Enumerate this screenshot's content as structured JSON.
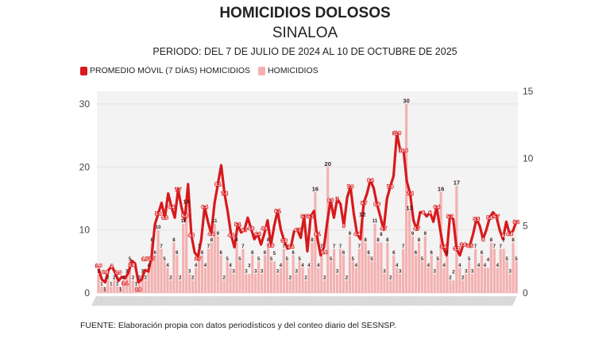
{
  "chart_data": {
    "type": "bar+line",
    "title": "HOMICIDIOS DOLOSOS",
    "subtitle": "SINALOA",
    "period": "PERIODO: DEL 7 DE JULIO DE 2024 AL 10 DE OCTUBRE DE 2025",
    "legend": {
      "placement": "top-left",
      "items": [
        {
          "label": "PROMEDIO MÓVIL (7 DÍAS) HOMICIDIOS",
          "color": "#d7191c"
        },
        {
          "label": "HOMICIDIOS",
          "color": "#f4b0b0"
        }
      ]
    },
    "y_left": {
      "ylim": [
        0,
        32
      ],
      "ticks": [
        "0",
        "10",
        "20",
        "30"
      ]
    },
    "y_right": {
      "ylim": [
        0,
        15
      ],
      "ticks": [
        "0",
        "5",
        "10",
        "15"
      ]
    },
    "grid": true,
    "series": [
      {
        "name": "HOMICIDIOS",
        "type": "bar",
        "axis": "left",
        "values": [
          3,
          1,
          1,
          2,
          1,
          2,
          1,
          1,
          2,
          3,
          5,
          2,
          1,
          2,
          3,
          2,
          4,
          8,
          6,
          10,
          7,
          5,
          4,
          2,
          8,
          6,
          2,
          11,
          14,
          3,
          2,
          4,
          7,
          6,
          4,
          7,
          8,
          11,
          9,
          6,
          2,
          5,
          4,
          3,
          8,
          5,
          7,
          3,
          3,
          6,
          3,
          5,
          3,
          6,
          8,
          5,
          5,
          3,
          4,
          7,
          5,
          2,
          6,
          3,
          5,
          4,
          2,
          4,
          8,
          16,
          4,
          7,
          2,
          20,
          5,
          7,
          3,
          7,
          6,
          2,
          9,
          5,
          4,
          7,
          12,
          8,
          6,
          5,
          11,
          8,
          8,
          3,
          8,
          2,
          6,
          4,
          3,
          7,
          30,
          13,
          9,
          6,
          8,
          5,
          9,
          4,
          6,
          3,
          5,
          16,
          4,
          6,
          2,
          2,
          17,
          4,
          2,
          3,
          5,
          3,
          7,
          4,
          6,
          4,
          4,
          8,
          7,
          4,
          7,
          7,
          5,
          3,
          8,
          5
        ]
      },
      {
        "name": "PROMEDIO MÓVIL (7 DÍAS) HOMICIDIOS",
        "type": "line",
        "axis": "right",
        "values": [
          1.8,
          1.0,
          0.8,
          1.7,
          2.0,
          1.5,
          0.9,
          1.2,
          1.1,
          1.5,
          2.4,
          2.2,
          0.8,
          1.0,
          1.7,
          1.6,
          2.7,
          5.1,
          5.9,
          6.7,
          5.6,
          7.4,
          6.4,
          5.6,
          7.7,
          6.4,
          5.4,
          8.1,
          4.3,
          3.0,
          2.7,
          4.0,
          6.4,
          5.3,
          4.4,
          6.7,
          8.1,
          9.5,
          7.4,
          6.0,
          4.3,
          3.4,
          5.1,
          4.5,
          4.7,
          5.6,
          4.8,
          4.0,
          4.4,
          3.6,
          4.4,
          5.4,
          3.6,
          5.0,
          6.1,
          4.7,
          3.9,
          3.3,
          3.4,
          4.6,
          4.7,
          4.1,
          5.7,
          3.1,
          5.7,
          6.1,
          4.1,
          2.8,
          3.4,
          5.3,
          6.9,
          5.6,
          7.0,
          6.6,
          5.0,
          7.1,
          7.9,
          5.9,
          4.4,
          4.0,
          6.7,
          7.4,
          8.4,
          7.8,
          6.6,
          5.7,
          4.7,
          7.0,
          7.9,
          8.7,
          11.9,
          10.6,
          10.6,
          8.3,
          7.4,
          5.4,
          4.7,
          6.0,
          6.0,
          5.7,
          6.0,
          5.3,
          6.4,
          4.8,
          3.4,
          2.8,
          5.7,
          5.5,
          3.3,
          2.8,
          3.6,
          3.6,
          3.5,
          4.4,
          5.5,
          5.0,
          4.0,
          4.7,
          5.6,
          6.0,
          5.7,
          4.7,
          4.0,
          5.3,
          4.4,
          4.6,
          5.3
        ]
      }
    ],
    "source": "FUENTE: Elaboración propia con datos periodísticos y del conteo diario del SESNSP."
  }
}
